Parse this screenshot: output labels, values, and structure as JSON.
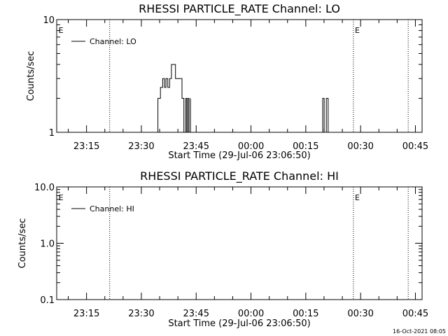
{
  "chart_data": [
    {
      "type": "line",
      "title": "RHESSI PARTICLE_RATE Channel: LO",
      "xlabel": "Start Time (29-Jul-06 23:06:50)",
      "ylabel": "Counts/sec",
      "yscale": "log",
      "ylim": [
        1,
        10
      ],
      "yticks": [
        "1",
        "10"
      ],
      "xticks": [
        "23:15",
        "23:30",
        "23:45",
        "00:00",
        "00:15",
        "00:30",
        "00:45"
      ],
      "xlim_minutes": [
        0,
        100
      ],
      "xtick_minutes": [
        8.17,
        23.17,
        38.17,
        53.17,
        68.17,
        83.17,
        98.17
      ],
      "legend": {
        "entries": [
          "Channel: LO"
        ],
        "position": "top-left"
      },
      "vlines_minutes": [
        14.5,
        81.2,
        96.2
      ],
      "markers": [
        {
          "label": "E",
          "x_minutes": 0.5
        },
        {
          "label": "E",
          "x_minutes": 81.6
        }
      ],
      "series": [
        {
          "name": "Channel: LO",
          "x": [
            27.7,
            27.7,
            28.4,
            28.4,
            29.0,
            29.0,
            29.5,
            29.5,
            29.9,
            29.9,
            30.4,
            30.4,
            30.9,
            30.9,
            31.4,
            31.4,
            32.5,
            32.5,
            34.3,
            34.3,
            34.8,
            34.8,
            35.3,
            35.3,
            35.6,
            35.6,
            35.9,
            35.9,
            36.2,
            36.2,
            36.6,
            36.6,
            36.6,
            72.8,
            72.8,
            73.2,
            73.2,
            73.8,
            73.8,
            74.3,
            74.3
          ],
          "y": [
            1,
            2,
            2,
            2.5,
            2.5,
            3,
            3,
            2.5,
            2.5,
            3,
            3,
            2.5,
            2.5,
            3,
            3,
            4,
            4,
            3,
            3,
            2,
            2,
            1,
            1,
            2,
            2,
            1,
            1,
            2,
            2,
            1,
            1,
            2,
            1,
            1,
            2,
            2,
            1,
            1,
            2,
            2,
            1
          ]
        }
      ]
    },
    {
      "type": "line",
      "title": "RHESSI PARTICLE_RATE Channel: HI",
      "xlabel": "Start Time (29-Jul-06 23:06:50)",
      "ylabel": "Counts/sec",
      "yscale": "log",
      "ylim": [
        0.1,
        10
      ],
      "yticks": [
        "0.1",
        "1.0",
        "10.0"
      ],
      "xticks": [
        "23:15",
        "23:30",
        "23:45",
        "00:00",
        "00:15",
        "00:30",
        "00:45"
      ],
      "xlim_minutes": [
        0,
        100
      ],
      "xtick_minutes": [
        8.17,
        23.17,
        38.17,
        53.17,
        68.17,
        83.17,
        98.17
      ],
      "legend": {
        "entries": [
          "Channel: HI"
        ],
        "position": "top-left"
      },
      "vlines_minutes": [
        14.5,
        81.2,
        96.2
      ],
      "markers": [
        {
          "label": "E",
          "x_minutes": 0.5
        },
        {
          "label": "E",
          "x_minutes": 81.6
        }
      ],
      "series": [
        {
          "name": "Channel: HI",
          "x": [],
          "y": []
        }
      ]
    }
  ],
  "footer": {
    "timestamp": "16-Oct-2021 08:05"
  }
}
